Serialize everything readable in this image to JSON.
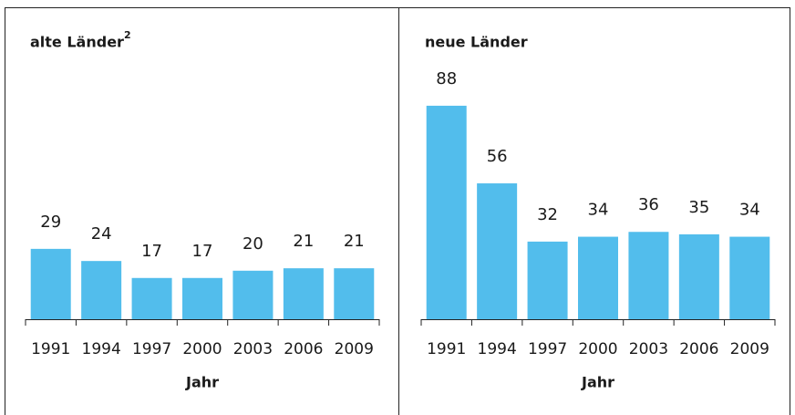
{
  "chart_data": [
    {
      "type": "bar",
      "title": "alte Länder",
      "title_superscript": "2",
      "x_label": "Jahr",
      "categories": [
        "1991",
        "1994",
        "1997",
        "2000",
        "2003",
        "2006",
        "2009"
      ],
      "values": [
        29,
        24,
        17,
        17,
        20,
        21,
        21
      ],
      "color": "#52bdec",
      "ylim": [
        0,
        100
      ]
    },
    {
      "type": "bar",
      "title": "neue Länder",
      "x_label": "Jahr",
      "categories": [
        "1991",
        "1994",
        "1997",
        "2000",
        "2003",
        "2006",
        "2009"
      ],
      "values": [
        88,
        56,
        32,
        34,
        36,
        35,
        34
      ],
      "color": "#52bdec",
      "ylim": [
        0,
        100
      ]
    }
  ]
}
